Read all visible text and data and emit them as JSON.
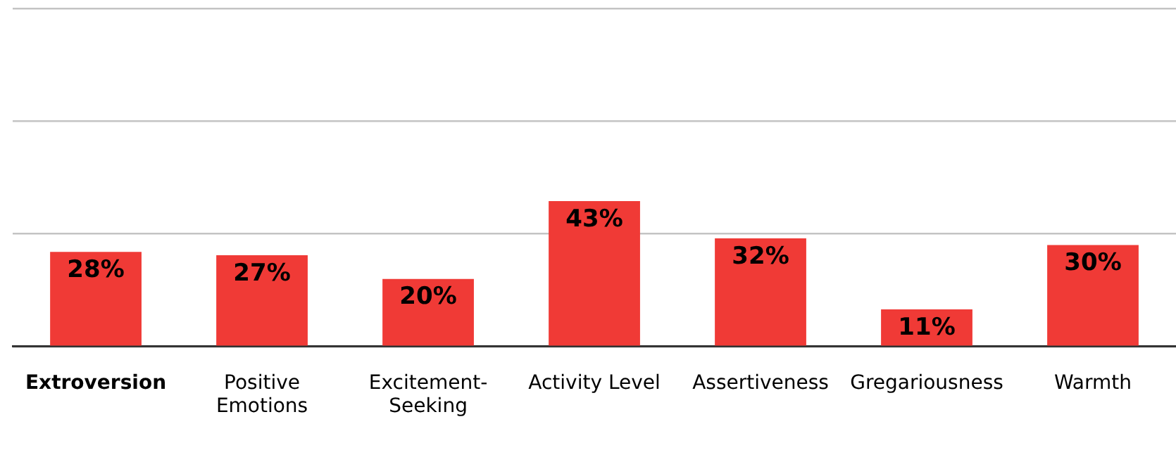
{
  "chart_data": {
    "type": "bar",
    "categories": [
      "Extroversion",
      "Positive Emotions",
      "Excitement-Seeking",
      "Activity Level",
      "Assertiveness",
      "Gregariousness",
      "Warmth"
    ],
    "values": [
      28,
      27,
      20,
      43,
      32,
      11,
      30
    ],
    "color": "#f03a36",
    "data_labels": true,
    "value_labels": [
      "28%",
      "27%",
      "20%",
      "43%",
      "32%",
      "11%",
      "30%"
    ],
    "ylim": [
      0,
      100
    ],
    "yticks": [
      {
        "value": 0,
        "label": null
      },
      {
        "value": 33.3,
        "label": null
      },
      {
        "value": 66.7,
        "label": null
      },
      {
        "value": 100,
        "label": null
      }
    ],
    "grid": "y",
    "tick_labels": "x",
    "legend": false
  }
}
